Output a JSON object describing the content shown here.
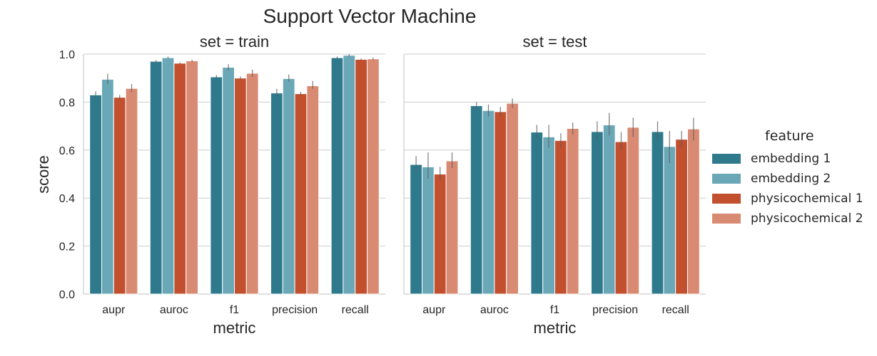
{
  "chart_data": {
    "type": "bar",
    "title": "Support Vector Machine",
    "ylabel": "score",
    "xlabel": "metric",
    "ylim": [
      0,
      1.0
    ],
    "yticks": [
      "0.0",
      "0.2",
      "0.4",
      "0.6",
      "0.8",
      "1.0"
    ],
    "grid": true,
    "legend_position": "right",
    "categories": [
      "aupr",
      "auroc",
      "f1",
      "precision",
      "recall"
    ],
    "legend_title": "feature",
    "series_styles": [
      {
        "name": "embedding 1",
        "color": "#2e7a8c"
      },
      {
        "name": "embedding 2",
        "color": "#6aa8b8"
      },
      {
        "name": "physicochemical 1",
        "color": "#c24f2e"
      },
      {
        "name": "physicochemical 2",
        "color": "#d98a72"
      }
    ],
    "panels": [
      {
        "title": "set = train",
        "series": [
          {
            "name": "embedding 1",
            "values": [
              0.83,
              0.97,
              0.905,
              0.838,
              0.985
            ],
            "err": [
              [
                0.815,
                0.845
              ],
              [
                0.965,
                0.975
              ],
              [
                0.897,
                0.913
              ],
              [
                0.825,
                0.855
              ],
              [
                0.98,
                0.99
              ]
            ]
          },
          {
            "name": "embedding 2",
            "values": [
              0.895,
              0.985,
              0.945,
              0.898,
              0.995
            ],
            "err": [
              [
                0.875,
                0.918
              ],
              [
                0.98,
                0.99
              ],
              [
                0.932,
                0.958
              ],
              [
                0.885,
                0.915
              ],
              [
                0.99,
                1.0
              ]
            ]
          },
          {
            "name": "physicochemical 1",
            "values": [
              0.82,
              0.962,
              0.9,
              0.835,
              0.978
            ],
            "err": [
              [
                0.81,
                0.83
              ],
              [
                0.958,
                0.966
              ],
              [
                0.893,
                0.907
              ],
              [
                0.827,
                0.843
              ],
              [
                0.974,
                0.982
              ]
            ]
          },
          {
            "name": "physicochemical 2",
            "values": [
              0.857,
              0.972,
              0.92,
              0.868,
              0.98
            ],
            "err": [
              [
                0.842,
                0.875
              ],
              [
                0.967,
                0.977
              ],
              [
                0.905,
                0.935
              ],
              [
                0.855,
                0.888
              ],
              [
                0.975,
                0.985
              ]
            ]
          }
        ]
      },
      {
        "title": "set = test",
        "series": [
          {
            "name": "embedding 1",
            "values": [
              0.54,
              0.785,
              0.675,
              0.677,
              0.677
            ],
            "err": [
              [
                0.51,
                0.575
              ],
              [
                0.77,
                0.8
              ],
              [
                0.645,
                0.705
              ],
              [
                0.64,
                0.72
              ],
              [
                0.64,
                0.72
              ]
            ]
          },
          {
            "name": "embedding 2",
            "values": [
              0.53,
              0.765,
              0.655,
              0.705,
              0.615
            ],
            "err": [
              [
                0.48,
                0.59
              ],
              [
                0.74,
                0.79
              ],
              [
                0.61,
                0.705
              ],
              [
                0.66,
                0.755
              ],
              [
                0.545,
                0.68
              ]
            ]
          },
          {
            "name": "physicochemical 1",
            "values": [
              0.5,
              0.76,
              0.64,
              0.635,
              0.645
            ],
            "err": [
              [
                0.475,
                0.53
              ],
              [
                0.74,
                0.78
              ],
              [
                0.61,
                0.67
              ],
              [
                0.6,
                0.675
              ],
              [
                0.61,
                0.68
              ]
            ]
          },
          {
            "name": "physicochemical 2",
            "values": [
              0.555,
              0.795,
              0.69,
              0.695,
              0.688
            ],
            "err": [
              [
                0.525,
                0.59
              ],
              [
                0.775,
                0.815
              ],
              [
                0.665,
                0.715
              ],
              [
                0.655,
                0.735
              ],
              [
                0.64,
                0.735
              ]
            ]
          }
        ]
      }
    ]
  }
}
